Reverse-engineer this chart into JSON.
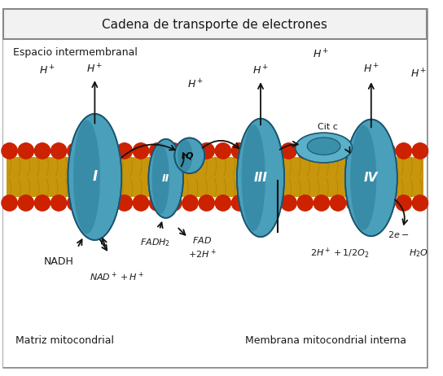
{
  "title": "Cadena de transporte de electrones",
  "bg": "#ffffff",
  "border": "#888888",
  "lipid_color": "#c8960c",
  "head_color": "#cc2200",
  "pc": "#4a9fba",
  "pc_dark": "#2a7a95",
  "pc_outline": "#1a5570",
  "tc": "#1a1a1a",
  "ac": "#111111",
  "title_fs": 11,
  "fs": 9,
  "fs_s": 8,
  "espacio": "Espacio intermembranal",
  "matrix": "Matriz mitocondrial",
  "membrana": "Membrana mitocondrial interna"
}
